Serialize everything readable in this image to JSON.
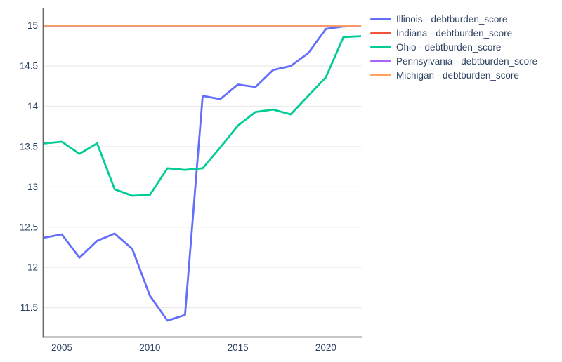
{
  "chart_data": {
    "type": "line",
    "x": [
      2004,
      2005,
      2006,
      2007,
      2008,
      2009,
      2010,
      2011,
      2012,
      2013,
      2014,
      2015,
      2016,
      2017,
      2018,
      2019,
      2020,
      2021,
      2022
    ],
    "series": [
      {
        "name": "Illinois - debtburden_score",
        "color": "#636EFA",
        "width": 2.8,
        "values": [
          12.37,
          12.41,
          12.12,
          12.33,
          12.42,
          12.23,
          11.65,
          11.34,
          11.41,
          14.13,
          14.09,
          14.27,
          14.24,
          14.45,
          14.5,
          14.66,
          14.96,
          14.99,
          15.0
        ]
      },
      {
        "name": "Indiana - debtburden_score",
        "color": "#EF553B",
        "width": 3.4,
        "values": [
          15,
          15,
          15,
          15,
          15,
          15,
          15,
          15,
          15,
          15,
          15,
          15,
          15,
          15,
          15,
          15,
          15,
          15,
          15
        ]
      },
      {
        "name": "Ohio - debtburden_score",
        "color": "#00CC96",
        "width": 2.8,
        "values": [
          13.54,
          13.56,
          13.41,
          13.54,
          12.97,
          12.89,
          12.9,
          13.23,
          13.21,
          13.23,
          13.49,
          13.76,
          13.93,
          13.96,
          13.9,
          14.13,
          14.36,
          14.86,
          14.87
        ]
      },
      {
        "name": "Pennsylvania - debtburden_score",
        "color": "#AB63FA",
        "width": 3.0,
        "values": [
          15,
          15,
          15,
          15,
          15,
          15,
          15,
          15,
          15,
          15,
          15,
          15,
          15,
          15,
          15,
          15,
          15,
          15,
          15
        ]
      },
      {
        "name": "Michigan - debtburden_score",
        "color": "#FFA15A",
        "width": 2.2,
        "values": [
          15,
          15,
          15,
          15,
          15,
          15,
          15,
          15,
          15,
          15,
          15,
          15,
          15,
          15,
          15,
          15,
          15,
          15,
          15
        ]
      }
    ],
    "title": "",
    "xlabel": "",
    "ylabel": "",
    "x_ticks": [
      2005,
      2010,
      2015,
      2020
    ],
    "y_ticks": [
      11.5,
      12,
      12.5,
      13,
      13.5,
      14,
      14.5,
      15
    ],
    "x_range": [
      2004,
      2022
    ],
    "y_range": [
      11.135,
      15.215
    ],
    "grid": "horizontal-only",
    "legend_position": "right-top"
  },
  "styles": {
    "background": "#ffffff",
    "axis_line_color": "#686868",
    "grid_color": "#ebebeb",
    "tick_label_color": "#2a3f5f",
    "legend_text_color": "#2a3f5f"
  }
}
